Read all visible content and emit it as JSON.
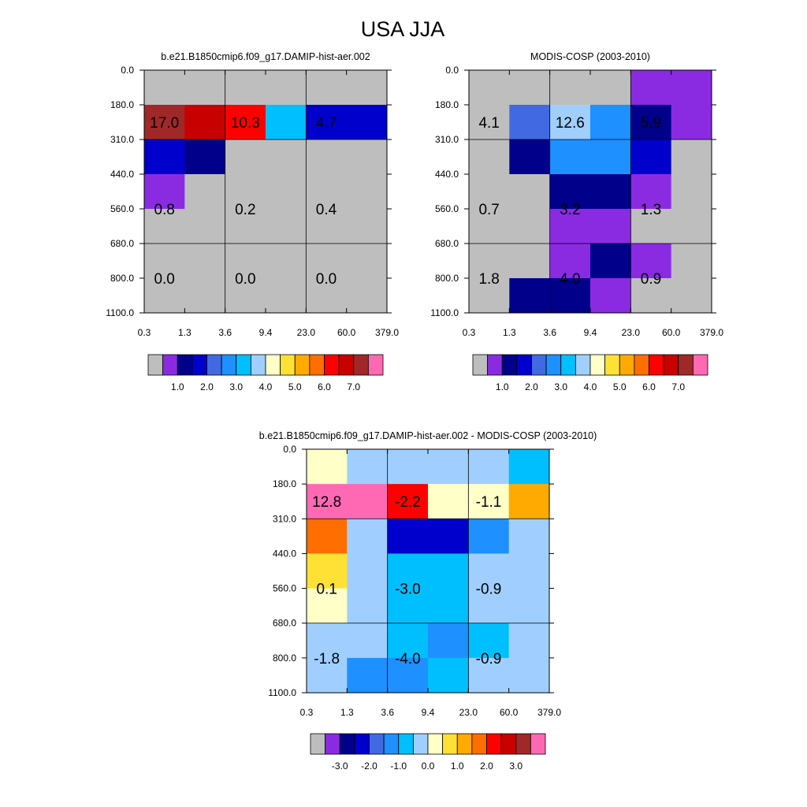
{
  "figure": {
    "title": "USA JJA"
  },
  "palettes": {
    "abs": [
      "#bebebe",
      "#8a2be2",
      "#00008b",
      "#0000cd",
      "#4169e1",
      "#1e90ff",
      "#00bfff",
      "#a0cfff",
      "#ffffc8",
      "#ffe135",
      "#ffaa00",
      "#ff6e00",
      "#ff0000",
      "#c80000",
      "#a02828",
      "#ff69b4"
    ],
    "diff": [
      "#bebebe",
      "#8a2be2",
      "#00008b",
      "#0000cd",
      "#4169e1",
      "#1e90ff",
      "#00bfff",
      "#a0cfff",
      "#ffffc8",
      "#ffe135",
      "#ffaa00",
      "#ff6e00",
      "#ff0000",
      "#c80000",
      "#a02828",
      "#ff69b4"
    ]
  },
  "chart_data": [
    {
      "type": "heatmap",
      "title": "b.e21.B1850cmip6.f09_g17.DAMIP-hist-aer.002",
      "palette": "abs",
      "x_tick_labels": [
        "0.3",
        "1.3",
        "3.6",
        "9.4",
        "23.0",
        "60.0",
        "379.0"
      ],
      "y_tick_labels": [
        "0.0",
        "180.0",
        "310.0",
        "440.0",
        "560.0",
        "680.0",
        "800.0",
        "1100.0"
      ],
      "cells": [
        [
          0,
          0,
          0,
          0,
          0,
          0
        ],
        [
          14,
          13,
          12,
          6,
          3,
          3
        ],
        [
          3,
          2,
          0,
          0,
          0,
          0
        ],
        [
          1,
          0,
          0,
          0,
          0,
          0
        ],
        [
          0,
          0,
          0,
          0,
          0,
          0
        ],
        [
          0,
          0,
          0,
          0,
          0,
          0
        ],
        [
          0,
          0,
          0,
          0,
          0,
          0
        ]
      ],
      "annotations": [
        {
          "col": 0.5,
          "row": 1.5,
          "text": "17.0"
        },
        {
          "col": 2.5,
          "row": 1.5,
          "text": "10.3"
        },
        {
          "col": 4.5,
          "row": 1.5,
          "text": "4.7"
        },
        {
          "col": 0.5,
          "row": 4.0,
          "text": "0.8"
        },
        {
          "col": 2.5,
          "row": 4.0,
          "text": "0.2"
        },
        {
          "col": 4.5,
          "row": 4.0,
          "text": "0.4"
        },
        {
          "col": 0.5,
          "row": 6.0,
          "text": "0.0"
        },
        {
          "col": 2.5,
          "row": 6.0,
          "text": "0.0"
        },
        {
          "col": 4.5,
          "row": 6.0,
          "text": "0.0"
        }
      ],
      "colorbar_labels": [
        "1.0",
        "2.0",
        "3.0",
        "4.0",
        "5.0",
        "6.0",
        "7.0"
      ]
    },
    {
      "type": "heatmap",
      "title": "MODIS-COSP (2003-2010)",
      "palette": "abs",
      "x_tick_labels": [
        "0.3",
        "1.3",
        "3.6",
        "9.4",
        "23.0",
        "60.0",
        "379.0"
      ],
      "y_tick_labels": [
        "0.0",
        "180.0",
        "310.0",
        "440.0",
        "560.0",
        "680.0",
        "800.0",
        "1100.0"
      ],
      "cells": [
        [
          0,
          0,
          0,
          0,
          1,
          1
        ],
        [
          0,
          4,
          7,
          5,
          2,
          1
        ],
        [
          0,
          2,
          5,
          5,
          3,
          0
        ],
        [
          0,
          0,
          2,
          2,
          1,
          0
        ],
        [
          0,
          0,
          1,
          1,
          0,
          0
        ],
        [
          0,
          0,
          1,
          2,
          1,
          0
        ],
        [
          0,
          2,
          2,
          1,
          0,
          0
        ]
      ],
      "annotations": [
        {
          "col": 0.5,
          "row": 1.5,
          "text": "4.1"
        },
        {
          "col": 2.5,
          "row": 1.5,
          "text": "12.6"
        },
        {
          "col": 4.5,
          "row": 1.5,
          "text": "5.9"
        },
        {
          "col": 0.5,
          "row": 4.0,
          "text": "0.7"
        },
        {
          "col": 2.5,
          "row": 4.0,
          "text": "3.2"
        },
        {
          "col": 4.5,
          "row": 4.0,
          "text": "1.3"
        },
        {
          "col": 0.5,
          "row": 6.0,
          "text": "1.8"
        },
        {
          "col": 2.5,
          "row": 6.0,
          "text": "4.0"
        },
        {
          "col": 4.5,
          "row": 6.0,
          "text": "0.9"
        }
      ],
      "colorbar_labels": [
        "1.0",
        "2.0",
        "3.0",
        "4.0",
        "5.0",
        "6.0",
        "7.0"
      ]
    },
    {
      "type": "heatmap",
      "title": "b.e21.B1850cmip6.f09_g17.DAMIP-hist-aer.002 - MODIS-COSP (2003-2010)",
      "palette": "diff",
      "x_tick_labels": [
        "0.3",
        "1.3",
        "3.6",
        "9.4",
        "23.0",
        "60.0",
        "379.0"
      ],
      "y_tick_labels": [
        "0.0",
        "180.0",
        "310.0",
        "440.0",
        "560.0",
        "680.0",
        "800.0",
        "1100.0"
      ],
      "cells": [
        [
          8,
          7,
          7,
          7,
          7,
          6
        ],
        [
          15,
          15,
          12,
          8,
          8,
          10
        ],
        [
          11,
          7,
          3,
          3,
          5,
          7
        ],
        [
          9,
          7,
          6,
          6,
          7,
          7
        ],
        [
          8,
          7,
          6,
          6,
          7,
          7
        ],
        [
          7,
          7,
          6,
          5,
          6,
          7
        ],
        [
          7,
          5,
          5,
          6,
          7,
          7
        ]
      ],
      "annotations": [
        {
          "col": 0.5,
          "row": 1.5,
          "text": "12.8"
        },
        {
          "col": 2.5,
          "row": 1.5,
          "text": "-2.2"
        },
        {
          "col": 4.5,
          "row": 1.5,
          "text": "-1.1"
        },
        {
          "col": 0.5,
          "row": 4.0,
          "text": "0.1"
        },
        {
          "col": 2.5,
          "row": 4.0,
          "text": "-3.0"
        },
        {
          "col": 4.5,
          "row": 4.0,
          "text": "-0.9"
        },
        {
          "col": 0.5,
          "row": 6.0,
          "text": "-1.8"
        },
        {
          "col": 2.5,
          "row": 6.0,
          "text": "-4.0"
        },
        {
          "col": 4.5,
          "row": 6.0,
          "text": "-0.9"
        }
      ],
      "colorbar_labels": [
        "-3.0",
        "-2.0",
        "-1.0",
        "0.0",
        "1.0",
        "2.0",
        "3.0"
      ]
    }
  ]
}
